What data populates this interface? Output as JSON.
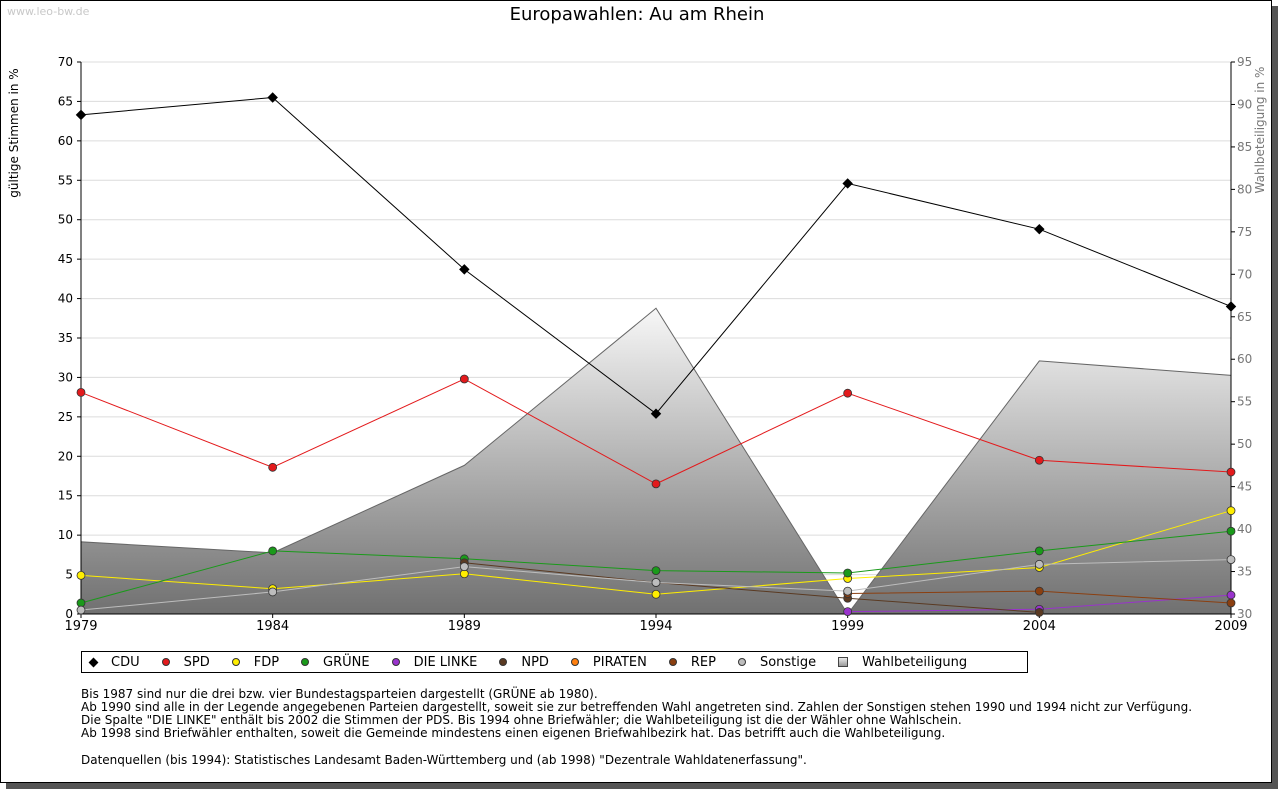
{
  "site": {
    "watermark": "www.leo-bw.de"
  },
  "chart_data": {
    "type": "line",
    "title": "Europawahlen: Au am Rhein",
    "ylabel": "gültige Stimmen in %",
    "y2label": "Wahlbeteiligung in %",
    "x": [
      1979,
      1984,
      1989,
      1994,
      1999,
      2004,
      2009
    ],
    "ylim": [
      0,
      70
    ],
    "y2lim": [
      30,
      95
    ],
    "yticks": [
      0,
      5,
      10,
      15,
      20,
      25,
      30,
      35,
      40,
      45,
      50,
      55,
      60,
      65,
      70
    ],
    "y2ticks": [
      30,
      35,
      40,
      45,
      50,
      55,
      60,
      65,
      70,
      75,
      80,
      85,
      90,
      95
    ],
    "grid": true,
    "legend_position": "bottom",
    "series": [
      {
        "name": "CDU",
        "color": "#000000",
        "marker": "diamond",
        "values": [
          63.3,
          65.5,
          43.7,
          25.4,
          54.6,
          48.8,
          39.0
        ]
      },
      {
        "name": "SPD",
        "color": "#e31a1c",
        "marker": "circle",
        "values": [
          28.1,
          18.6,
          29.8,
          16.5,
          28.0,
          19.5,
          18.0
        ]
      },
      {
        "name": "FDP",
        "color": "#ffee00",
        "marker": "circle",
        "values": [
          4.9,
          3.2,
          5.1,
          2.5,
          4.5,
          5.9,
          13.1
        ]
      },
      {
        "name": "GRÜNE",
        "color": "#1a9a1a",
        "marker": "circle",
        "values": [
          1.4,
          8.0,
          7.0,
          5.5,
          5.2,
          8.0,
          10.5
        ]
      },
      {
        "name": "DIE LINKE",
        "color": "#9933cc",
        "marker": "circle",
        "values": [
          null,
          null,
          null,
          null,
          0.3,
          0.6,
          2.4
        ]
      },
      {
        "name": "NPD",
        "color": "#5a3a22",
        "marker": "circle",
        "values": [
          null,
          null,
          6.5,
          4.0,
          2.0,
          0.2,
          null
        ]
      },
      {
        "name": "PIRATEN",
        "color": "#ff7f0e",
        "marker": "circle",
        "values": [
          null,
          null,
          null,
          null,
          null,
          null,
          null
        ]
      },
      {
        "name": "REP",
        "color": "#8b3f10",
        "marker": "circle",
        "values": [
          null,
          null,
          null,
          null,
          2.6,
          2.9,
          1.4
        ]
      },
      {
        "name": "Sonstige",
        "color": "#bdbdbd",
        "marker": "circle",
        "values": [
          0.5,
          2.8,
          6.0,
          4.0,
          2.9,
          6.3,
          6.9
        ]
      }
    ],
    "turnout": {
      "name": "Wahlbeteiligung",
      "axis": "right",
      "values": [
        38.5,
        37.2,
        47.5,
        66.0,
        30.0,
        59.8,
        58.1
      ]
    }
  },
  "notes": [
    "Bis 1987 sind nur die drei bzw. vier Bundestagsparteien dargestellt (GRÜNE ab 1980).",
    "Ab 1990 sind alle in der Legende angegebenen Parteien dargestellt, soweit sie zur betreffenden Wahl angetreten sind. Zahlen der Sonstigen stehen 1990 und 1994 nicht zur Verfügung.",
    "Die Spalte \"DIE LINKE\" enthält bis 2002 die Stimmen der PDS. Bis 1994 ohne Briefwähler; die Wahlbeteiligung ist die der Wähler ohne Wahlschein.",
    "Ab 1998 sind Briefwähler enthalten, soweit die Gemeinde mindestens einen eigenen Briefwahlbezirk hat. Das betrifft auch die Wahlbeteiligung."
  ],
  "source": "Datenquellen (bis 1994): Statistisches Landesamt Baden-Württemberg und (ab 1998) \"Dezentrale Wahldatenerfassung\"."
}
